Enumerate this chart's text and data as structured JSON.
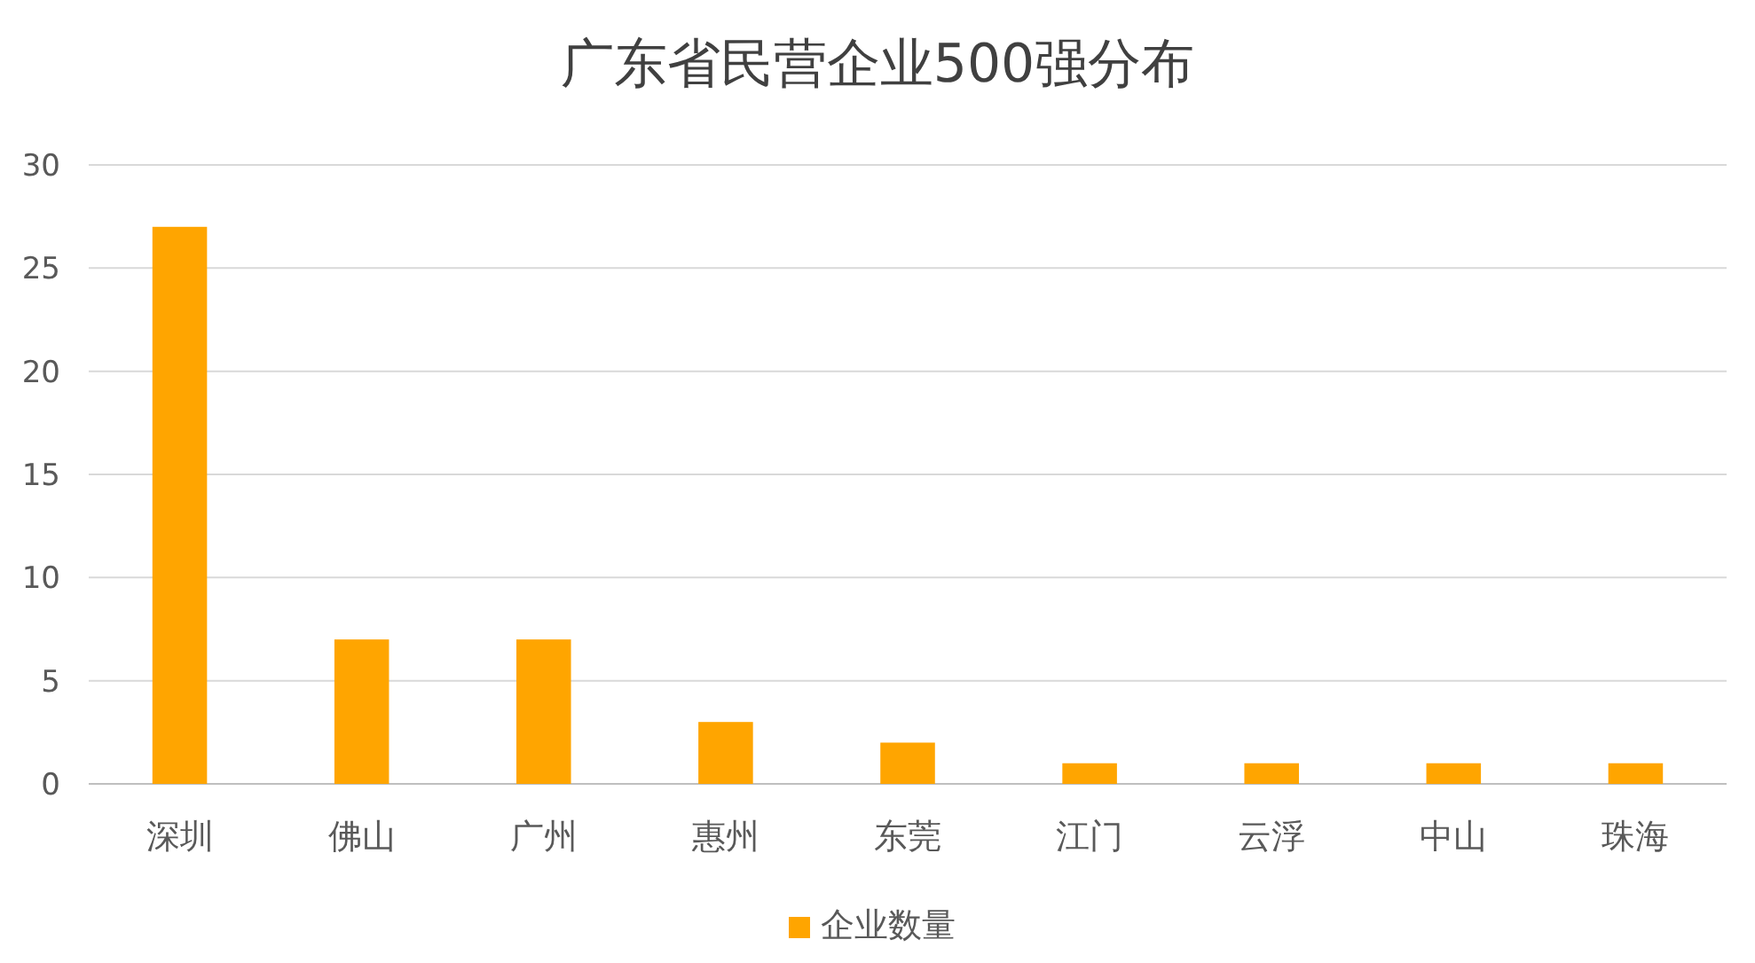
{
  "chart_data": {
    "type": "bar",
    "title": "广东省民营企业500强分布",
    "categories": [
      "深圳",
      "佛山",
      "广州",
      "惠州",
      "东莞",
      "江门",
      "云浮",
      "中山",
      "珠海"
    ],
    "series": [
      {
        "name": "企业数量",
        "color": "#ffa500",
        "values": [
          27,
          7,
          7,
          3,
          2,
          1,
          1,
          1,
          1
        ]
      }
    ],
    "ylim": [
      0,
      30
    ],
    "yticks": [
      0,
      5,
      10,
      15,
      20,
      25,
      30
    ],
    "grid": "y",
    "legend": "bottom"
  }
}
